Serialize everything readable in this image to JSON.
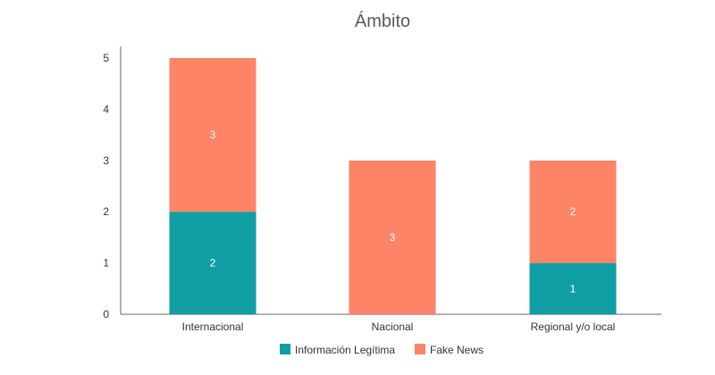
{
  "chart_data": {
    "type": "bar",
    "stacked": true,
    "title": "Ámbito",
    "xlabel": "",
    "ylabel": "",
    "categories": [
      "Internacional",
      "Nacional",
      "Regional y/o local"
    ],
    "series": [
      {
        "name": "Información Legítima",
        "values": [
          2,
          0,
          1
        ],
        "color": "#0f9ea3"
      },
      {
        "name": "Fake News",
        "values": [
          3,
          3,
          2
        ],
        "color": "#fd8466"
      }
    ],
    "ylim": [
      0,
      5
    ],
    "yticks": [
      "0",
      "1",
      "2",
      "3",
      "4",
      "5"
    ],
    "grid": false,
    "legend": "bottom"
  }
}
